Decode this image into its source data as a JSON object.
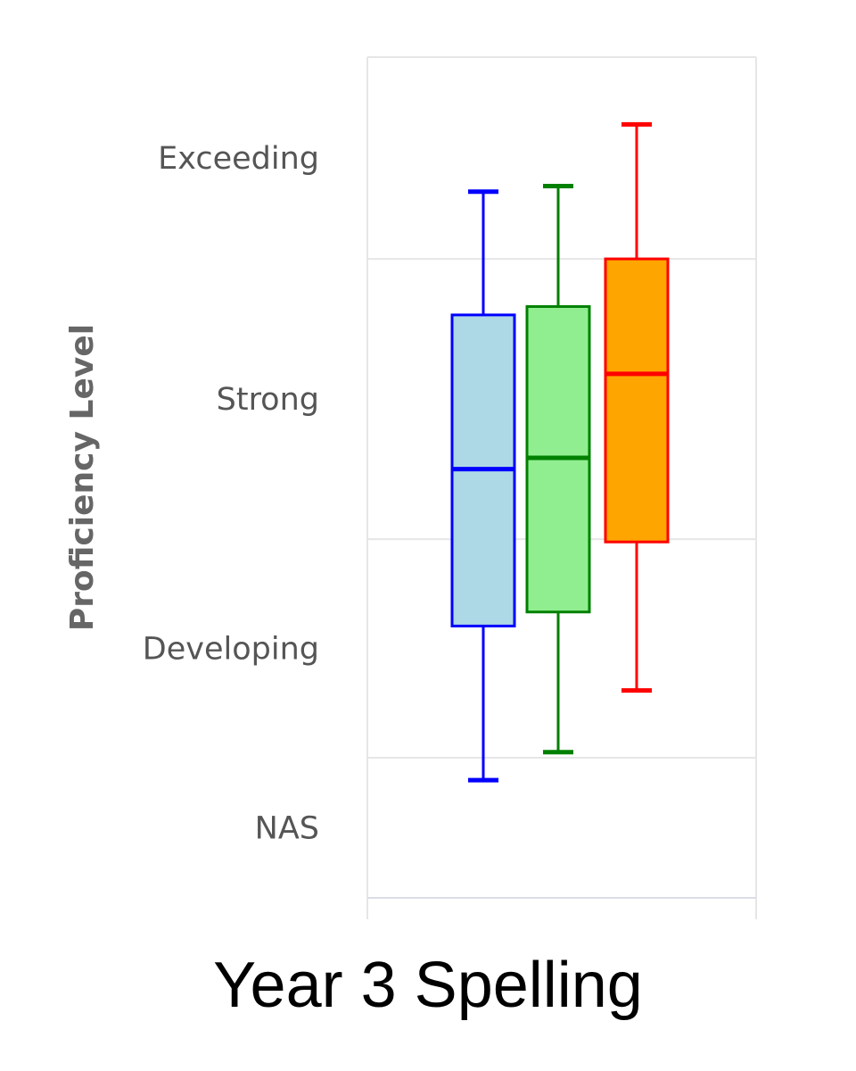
{
  "chart_data": {
    "type": "box",
    "title": "Year 3 Spelling",
    "ylabel": "Proficiency Level",
    "xlabel": "",
    "ylim": [
      0,
      3
    ],
    "y_bands": [
      {
        "label": "NAS",
        "from": 0,
        "to": 0.5
      },
      {
        "label": "Developing",
        "from": 0.5,
        "to": 1.28
      },
      {
        "label": "Strong",
        "from": 1.28,
        "to": 2.28
      },
      {
        "label": "Exceeding",
        "from": 2.28,
        "to": 3
      }
    ],
    "y_tick_labels": [
      "Exceeding",
      "Strong",
      "Developing",
      "NAS"
    ],
    "grid": true,
    "series": [
      {
        "whisker_low": 0.42,
        "q1": 0.97,
        "median": 1.53,
        "q3": 2.08,
        "whisker_high": 2.52,
        "stroke": "#0000ff",
        "fill": "#add8e6"
      },
      {
        "whisker_low": 0.52,
        "q1": 1.02,
        "median": 1.57,
        "q3": 2.11,
        "whisker_high": 2.54,
        "stroke": "#008000",
        "fill": "#90ee90"
      },
      {
        "whisker_low": 0.74,
        "q1": 1.27,
        "median": 1.87,
        "q3": 2.28,
        "whisker_high": 2.76,
        "stroke": "#ff0000",
        "fill": "#ffa500"
      }
    ]
  }
}
